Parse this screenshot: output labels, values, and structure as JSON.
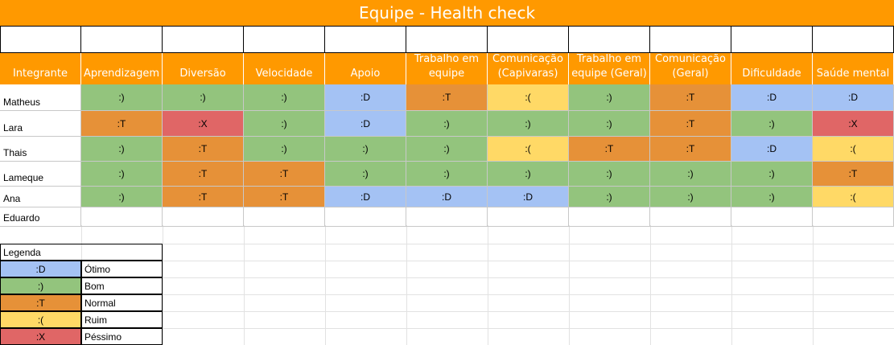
{
  "title": "Equipe - Health check",
  "headers": [
    "Integrante",
    "Aprendizagem",
    "Diversão",
    "Velocidade",
    "Apoio",
    "Trabalho em equipe",
    "Comunicação (Capivaras)",
    "Trabalho em equipe (Geral)",
    "Comunicação (Geral)",
    "Dificuldade",
    "Saúde mental"
  ],
  "rows": [
    {
      "name": "Matheus",
      "cells": [
        ":)",
        ":)",
        ":)",
        ":D",
        ":T",
        ":(",
        ":)",
        ":T",
        ":D",
        ":D"
      ]
    },
    {
      "name": "Lara",
      "cells": [
        ":T",
        ":X",
        ":)",
        ":D",
        ":)",
        ":)",
        ":)",
        ":T",
        ":)",
        ":X"
      ]
    },
    {
      "name": "Thais",
      "cells": [
        ":)",
        ":T",
        ":)",
        ":)",
        ":)",
        ":(",
        ":T",
        ":T",
        ":D",
        ":("
      ]
    },
    {
      "name": "Lameque",
      "cells": [
        ":)",
        ":T",
        ":T",
        ":)",
        ":)",
        ":)",
        ":)",
        ":)",
        ":)",
        ":T"
      ]
    },
    {
      "name": "Ana",
      "cells": [
        ":)",
        ":T",
        ":T",
        ":D",
        ":D",
        ":D",
        ":)",
        ":)",
        ":)",
        ":("
      ]
    },
    {
      "name": "Eduardo",
      "cells": [
        "",
        "",
        "",
        "",
        "",
        "",
        "",
        "",
        "",
        ""
      ]
    }
  ],
  "legend": {
    "title": "Legenda",
    "items": [
      {
        "symbol": ":D",
        "label": "Ótimo"
      },
      {
        "symbol": ":)",
        "label": "Bom"
      },
      {
        "symbol": ":T",
        "label": "Normal"
      },
      {
        "symbol": ":(",
        "label": "Ruim"
      },
      {
        "symbol": ":X",
        "label": "Péssimo"
      }
    ]
  },
  "colors": {
    "header": "#ff9900",
    ":D": "#a4c2f4",
    ":)": "#93c47d",
    ":T": "#e69138",
    ":(": "#ffd966",
    ":X": "#e06666"
  }
}
